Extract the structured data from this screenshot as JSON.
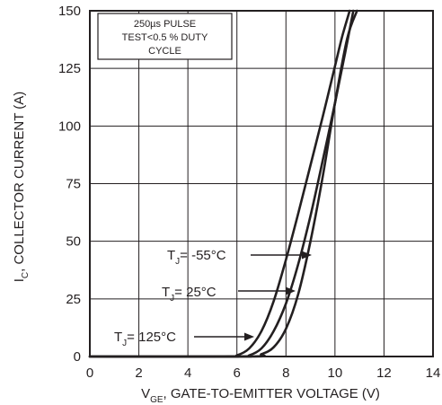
{
  "chart_data": {
    "type": "line",
    "title": "",
    "xlabel": {
      "main": "V",
      "sub": "GE",
      "rest": ", GATE-TO-EMITTER VOLTAGE (V)"
    },
    "ylabel": {
      "main": "I",
      "sub": "C",
      "rest": ", COLLECTOR CURRENT (A)"
    },
    "xlim": [
      0,
      14
    ],
    "ylim": [
      0,
      150
    ],
    "xticks": [
      0,
      2,
      4,
      6,
      8,
      10,
      12,
      14
    ],
    "yticks": [
      0,
      25,
      50,
      75,
      100,
      125,
      150
    ],
    "grid": true,
    "note": [
      "250µs PULSE",
      "TEST<0.5 % DUTY",
      "CYCLE"
    ],
    "series": [
      {
        "name": "T_J = 125°C",
        "label": {
          "main": "T",
          "sub": "J",
          "rest": "= 125°C"
        },
        "x": [
          0,
          5.5,
          6.0,
          6.5,
          7.0,
          7.5,
          8.0,
          8.5,
          9.0,
          9.5,
          10.0,
          10.3,
          10.6
        ],
        "y": [
          0,
          0,
          0.5,
          3.5,
          11,
          24,
          42,
          62,
          83,
          104,
          126,
          139,
          150
        ]
      },
      {
        "name": "T_J = 25°C",
        "label": {
          "main": "T",
          "sub": "J",
          "rest": "= 25°C"
        },
        "x": [
          0,
          6.0,
          6.5,
          7.0,
          7.5,
          8.0,
          8.5,
          9.0,
          9.5,
          10.0,
          10.4,
          10.75
        ],
        "y": [
          0,
          0,
          0.5,
          3.5,
          11,
          23,
          40,
          61,
          85,
          110,
          131,
          150
        ]
      },
      {
        "name": "T_J = -55°C",
        "label": {
          "main": "T",
          "sub": "J",
          "rest": "= -55°C"
        },
        "x": [
          0,
          6.5,
          7.0,
          7.5,
          8.0,
          8.5,
          9.0,
          9.5,
          10.0,
          10.5,
          10.9
        ],
        "y": [
          0,
          0,
          1,
          4,
          12,
          27,
          50,
          78,
          110,
          138,
          150
        ]
      }
    ]
  }
}
